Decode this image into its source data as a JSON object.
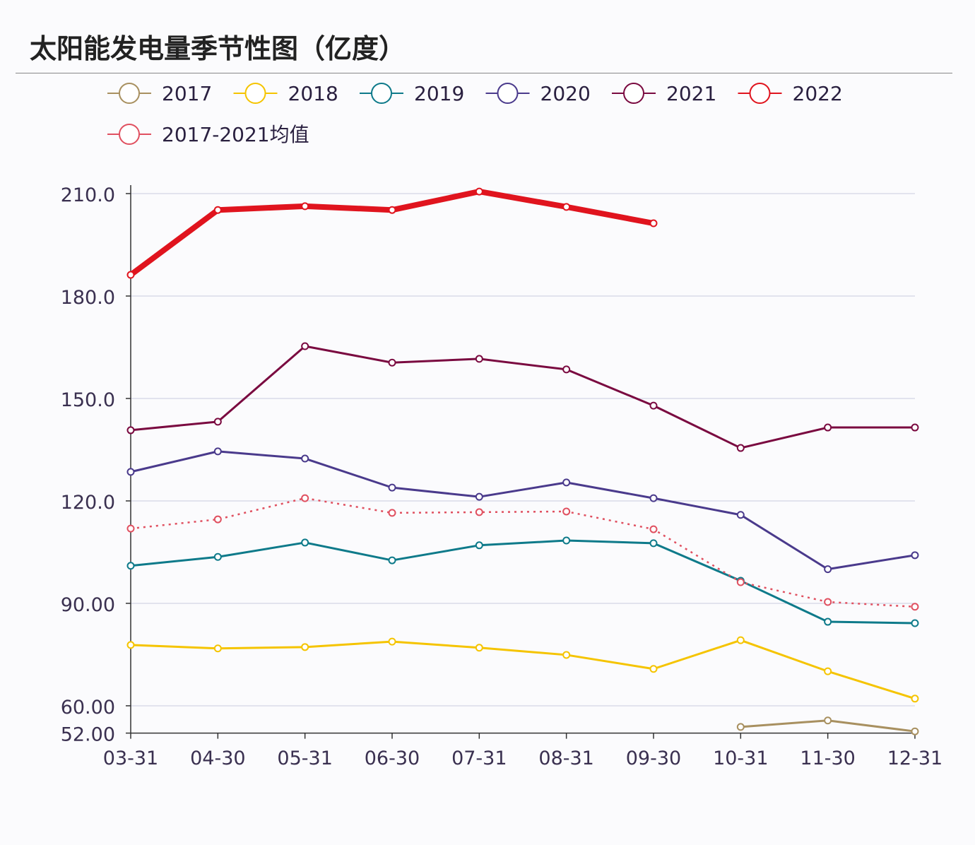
{
  "chart_data": {
    "type": "line",
    "title": "太阳能发电量季节性图（亿度）",
    "categories": [
      "03-31",
      "04-30",
      "05-31",
      "06-30",
      "07-31",
      "08-31",
      "09-30",
      "10-31",
      "11-30",
      "12-31"
    ],
    "y_ticks": [
      "210.0",
      "180.0",
      "150.0",
      "120.0",
      "90.00",
      "60.00",
      "52.00"
    ],
    "ylim": [
      52,
      210
    ],
    "grid": true,
    "legend_position": "top-left",
    "series": [
      {
        "name": "2017",
        "color": "#a89060",
        "values": [
          null,
          null,
          null,
          null,
          null,
          null,
          null,
          53.8,
          55.7,
          52.5
        ]
      },
      {
        "name": "2018",
        "color": "#f5c400",
        "values": [
          77.8,
          76.8,
          77.2,
          78.8,
          77.0,
          74.9,
          70.8,
          79.2,
          70.1,
          62.1
        ]
      },
      {
        "name": "2019",
        "color": "#0e7a8a",
        "values": [
          101.0,
          103.6,
          107.8,
          102.6,
          107.0,
          108.4,
          107.6,
          96.6,
          84.6,
          84.2
        ]
      },
      {
        "name": "2020",
        "color": "#4a3a8c",
        "values": [
          128.5,
          134.5,
          132.4,
          123.9,
          121.2,
          125.4,
          120.8,
          115.9,
          100.0,
          104.1
        ]
      },
      {
        "name": "2021",
        "color": "#7a0a40",
        "values": [
          140.7,
          143.2,
          165.3,
          160.5,
          161.6,
          158.5,
          147.9,
          135.5,
          141.5,
          141.5
        ]
      },
      {
        "name": "2022",
        "color": "#e0141e",
        "values": [
          186.2,
          205.2,
          206.3,
          205.2,
          210.6,
          206.1,
          201.3,
          null,
          null,
          null
        ]
      },
      {
        "name": "2017-2021均值",
        "color": "#e05060",
        "dashed": true,
        "values": [
          111.9,
          114.6,
          120.8,
          116.5,
          116.7,
          116.9,
          111.7,
          96.2,
          90.4,
          89.0
        ]
      }
    ]
  }
}
